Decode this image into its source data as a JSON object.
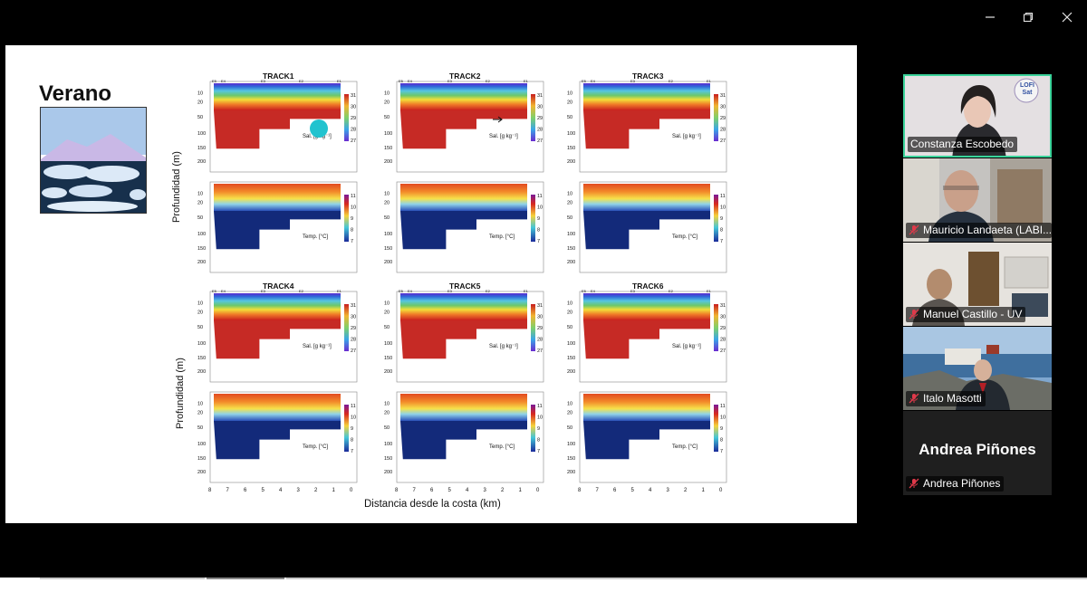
{
  "window": {
    "minimize_icon": "minimize-icon",
    "restore_icon": "restore-icon",
    "close_icon": "close-icon"
  },
  "slide": {
    "title": "Verano",
    "figure": {
      "y_label": "Profundidad (m)",
      "x_label": "Distancia desde la costa (km)",
      "x_ticks": [
        "8",
        "7",
        "6",
        "5",
        "4",
        "3",
        "2",
        "1",
        "0"
      ],
      "depth_ticks": [
        "10",
        "20",
        "50",
        "100",
        "150",
        "200"
      ],
      "station_labels": [
        "E5",
        "E4",
        "E3",
        "E2",
        "E1"
      ],
      "tracks": [
        "TRACK1",
        "TRACK2",
        "TRACK3",
        "TRACK4",
        "TRACK5",
        "TRACK6"
      ],
      "sal_label": "Sal. [g  kg⁻¹]",
      "temp_label": "Temp. [°C]",
      "sal_ticks": [
        "31",
        "30",
        "29",
        "28",
        "27"
      ],
      "temp_ticks": [
        "11",
        "10",
        "9",
        "8",
        "7"
      ]
    }
  },
  "participants": [
    {
      "name": "Constanza Escobedo",
      "muted": false,
      "active": true,
      "logo": "LOFI Sat"
    },
    {
      "name": "Mauricio Landaeta (LABI...",
      "muted": true,
      "active": false
    },
    {
      "name": "Manuel Castillo - UV",
      "muted": true,
      "active": false
    },
    {
      "name": "Italo Masotti",
      "muted": true,
      "active": false
    },
    {
      "name": "Andrea Piñones",
      "muted": true,
      "active": false,
      "display_name": "Andrea Piñones"
    }
  ],
  "colors": {
    "active_border": "#3ad39a",
    "mute_red": "#e0394a",
    "pointer_dot": "#22c3cf"
  }
}
